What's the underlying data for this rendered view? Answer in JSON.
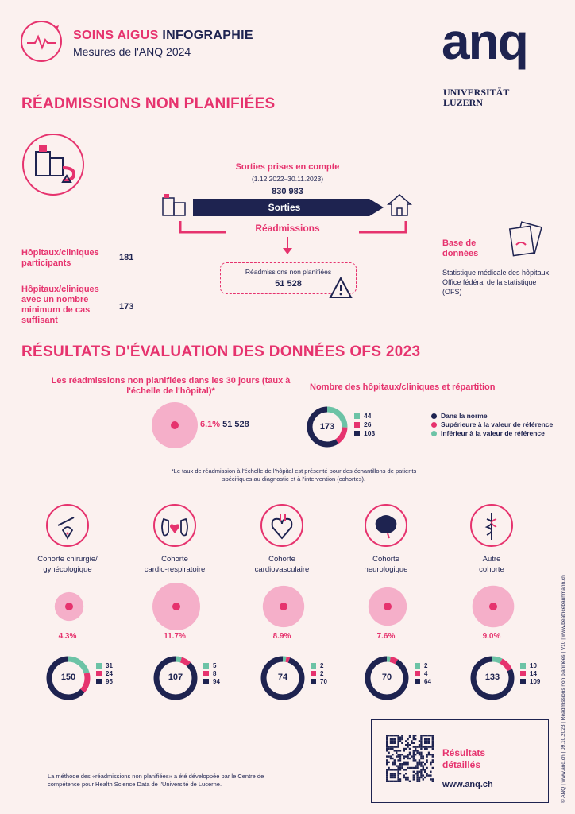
{
  "header": {
    "title_part1": "SOINS AIGUS",
    "title_part2": "INFOGRAPHIE",
    "subtitle": "Mesures de l'ANQ 2024",
    "logo_text": "anq",
    "university": "UNIVERSITÄT LUZERN"
  },
  "section1": {
    "title": "RÉADMISSIONS NON PLANIFIÉES",
    "sorties_label": "Sorties prises en compte",
    "period": "(1.12.2022–30.11.2023)",
    "sorties_value": "830 983",
    "sorties_bar": "Sorties",
    "readmissions": "Réadmissions",
    "readm_box_label": "Réadmissions non planifiées",
    "readm_box_value": "51 528",
    "participants_label": "Hôpitaux/cliniques participants",
    "participants_value": "181",
    "min_cases_label": "Hôpitaux/cliniques avec un nombre minimum de cas suffisant",
    "min_cases_value": "173",
    "database_title": "Base de données",
    "database_text": "Statistique médicale des hôpitaux, Office fédéral de la statistique (OFS)"
  },
  "section2": {
    "title": "RÉSULTATS D'ÉVALUATION DES DONNÉES OFS 2023",
    "rate_heading": "Les réadmissions non planifiées dans les 30 jours (taux à l'échelle de l'hôpital)*",
    "overall_rate": "6.1%",
    "overall_count": "51 528",
    "distribution_heading": "Nombre des hôpitaux/cliniques et répartition",
    "overall_total": "173",
    "overall_inf": 44,
    "overall_sup": 26,
    "overall_norm": 103,
    "legend": {
      "norm": "Dans la norme",
      "sup": "Supérieure à la valeur de référence",
      "inf": "Inférieur à la valeur de référence"
    },
    "footnote": "*Le taux de réadmission à l'échelle de l'hôpital est présenté pour des échantillons de patients spécifiques au diagnostic et à l'intervention (cohortes)."
  },
  "colors": {
    "navy": "#1e2350",
    "pink": "#e6336e",
    "teal": "#6cc3a6",
    "light_pink": "#f5afc9"
  },
  "cohorts": [
    {
      "label_line1": "Cohorte chirurgie/",
      "label_line2": "gynécologique",
      "rate": "4.3%",
      "rate_value": 4.3,
      "total": "150",
      "inf": 31,
      "sup": 24,
      "norm": 95,
      "icon": "scalpel-uterus-icon"
    },
    {
      "label_line1": "Cohorte",
      "label_line2": "cardio-respiratoire",
      "rate": "11.7%",
      "rate_value": 11.7,
      "total": "107",
      "inf": 5,
      "sup": 8,
      "norm": 94,
      "icon": "heart-lungs-icon"
    },
    {
      "label_line1": "Cohorte",
      "label_line2": "cardiovasculaire",
      "rate": "8.9%",
      "rate_value": 8.9,
      "total": "74",
      "inf": 2,
      "sup": 2,
      "norm": 70,
      "icon": "heart-icon"
    },
    {
      "label_line1": "Cohorte",
      "label_line2": "neurologique",
      "rate": "7.6%",
      "rate_value": 7.6,
      "total": "70",
      "inf": 2,
      "sup": 4,
      "norm": 64,
      "icon": "brain-icon"
    },
    {
      "label_line1": "Autre",
      "label_line2": "cohorte",
      "rate": "9.0%",
      "rate_value": 9.0,
      "total": "133",
      "inf": 10,
      "sup": 14,
      "norm": 109,
      "icon": "caduceus-icon"
    }
  ],
  "footer": {
    "method_note": "La méthode des «réadmissions non planifiées» a été développée par le Centre de compétence pour Health Science Data de l'Université de Lucerne.",
    "results_label": "Résultats détaillés",
    "results_url": "www.anq.ch",
    "side_text": "© ANQ | www.anq.ch | 09.10.2023 | Réadmissions non planifiées | V10 | www.beatricebauhmann.ch"
  }
}
